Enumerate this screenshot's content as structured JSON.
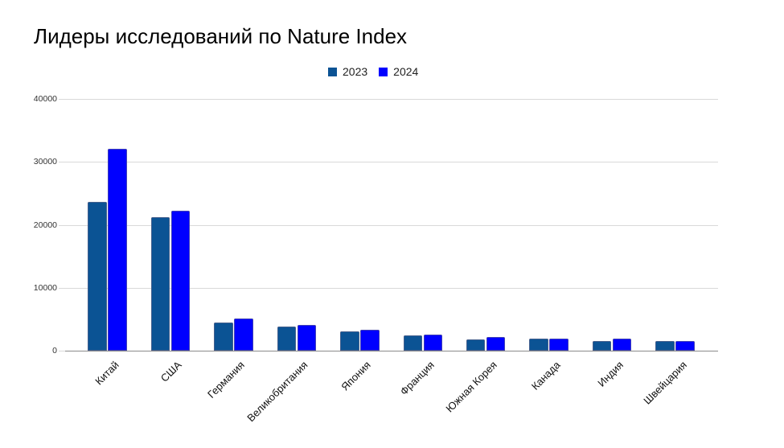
{
  "chart_data": {
    "type": "bar",
    "title": "Лидеры исследований по Nature Index",
    "xlabel": "",
    "ylabel": "",
    "ylim": [
      0,
      40000
    ],
    "yticks": [
      0,
      10000,
      20000,
      30000,
      40000
    ],
    "ytick_labels": [
      "0",
      "10000",
      "20000",
      "30000",
      "40000"
    ],
    "grid": true,
    "legend_position": "top",
    "categories": [
      "Китай",
      "США",
      "Германия",
      "Великобритания",
      "Япония",
      "Франция",
      "Южная Корея",
      "Канада",
      "Индия",
      "Швейцария"
    ],
    "series": [
      {
        "name": "2023",
        "color": "#0b5394",
        "values": [
          23600,
          21200,
          4470,
          3830,
          3070,
          2390,
          1750,
          1920,
          1490,
          1490
        ]
      },
      {
        "name": "2024",
        "color": "#0000ff",
        "values": [
          32100,
          22200,
          5110,
          4050,
          3280,
          2560,
          2170,
          1960,
          1960,
          1575
        ]
      }
    ]
  },
  "header": {
    "title": "Лидеры исследований по Nature Index"
  },
  "legend": {
    "items": [
      {
        "label": "2023",
        "color": "#0b5394"
      },
      {
        "label": "2024",
        "color": "#0000ff"
      }
    ]
  }
}
